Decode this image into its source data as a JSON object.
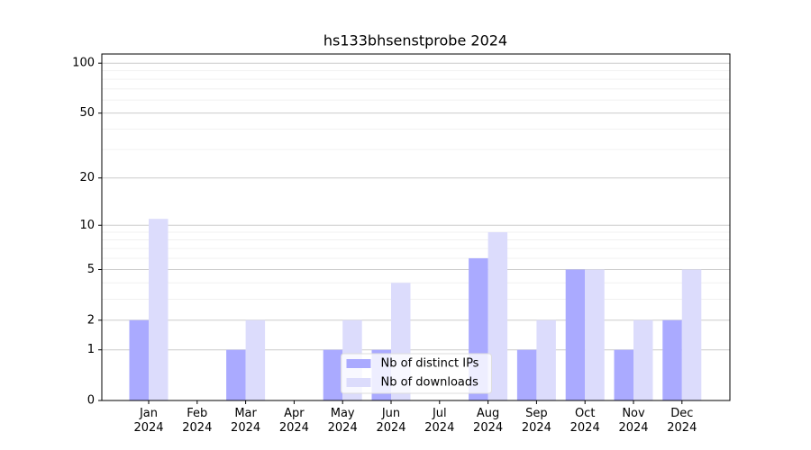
{
  "chart_data": {
    "type": "bar",
    "title": "hs133bhsenstprobe 2024",
    "categories": [
      "Jan\n2024",
      "Feb\n2024",
      "Mar\n2024",
      "Apr\n2024",
      "May\n2024",
      "Jun\n2024",
      "Jul\n2024",
      "Aug\n2024",
      "Sep\n2024",
      "Oct\n2024",
      "Nov\n2024",
      "Dec\n2024"
    ],
    "series": [
      {
        "name": "Nb of distinct IPs",
        "color": "#aaaaff",
        "values": [
          2,
          0,
          1,
          0,
          1,
          1,
          0,
          6,
          1,
          5,
          1,
          2
        ]
      },
      {
        "name": "Nb of downloads",
        "color": "#dcdcfc",
        "values": [
          11,
          0,
          2,
          0,
          2,
          4,
          0,
          9,
          2,
          5,
          2,
          5
        ]
      }
    ],
    "yscale": "log(1+y)",
    "ylim": [
      0,
      113.5
    ],
    "yticks": [
      0,
      1,
      2,
      5,
      10,
      20,
      50,
      100
    ],
    "minor_yticks": [
      3,
      4,
      6,
      7,
      8,
      9,
      30,
      40,
      60,
      70,
      80,
      90
    ],
    "grid": true,
    "legend": "lower center"
  }
}
